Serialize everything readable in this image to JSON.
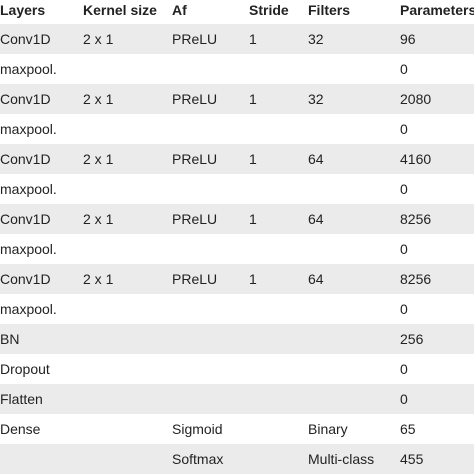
{
  "header": {
    "layers": "Layers",
    "kernel_size": "Kernel size",
    "af": "Af",
    "stride": "Stride",
    "filters": "Filters",
    "parameters": "Parameters"
  },
  "rows": [
    {
      "layers": "Conv1D",
      "kernel_size": "2 x 1",
      "af": "PReLU",
      "stride": "1",
      "filters": "32",
      "parameters": "96"
    },
    {
      "layers": "maxpool.",
      "kernel_size": "",
      "af": "",
      "stride": "",
      "filters": "",
      "parameters": "0"
    },
    {
      "layers": "Conv1D",
      "kernel_size": "2 x 1",
      "af": "PReLU",
      "stride": "1",
      "filters": "32",
      "parameters": "2080"
    },
    {
      "layers": "maxpool.",
      "kernel_size": "",
      "af": "",
      "stride": "",
      "filters": "",
      "parameters": "0"
    },
    {
      "layers": "Conv1D",
      "kernel_size": "2 x 1",
      "af": "PReLU",
      "stride": "1",
      "filters": "64",
      "parameters": "4160"
    },
    {
      "layers": "maxpool.",
      "kernel_size": "",
      "af": "",
      "stride": "",
      "filters": "",
      "parameters": "0"
    },
    {
      "layers": "Conv1D",
      "kernel_size": "2 x 1",
      "af": "PReLU",
      "stride": "1",
      "filters": "64",
      "parameters": "8256"
    },
    {
      "layers": "maxpool.",
      "kernel_size": "",
      "af": "",
      "stride": "",
      "filters": "",
      "parameters": "0"
    },
    {
      "layers": "Conv1D",
      "kernel_size": "2 x 1",
      "af": "PReLU",
      "stride": "1",
      "filters": "64",
      "parameters": "8256"
    },
    {
      "layers": "maxpool.",
      "kernel_size": "",
      "af": "",
      "stride": "",
      "filters": "",
      "parameters": "0"
    },
    {
      "layers": "BN",
      "kernel_size": "",
      "af": "",
      "stride": "",
      "filters": "",
      "parameters": "256"
    },
    {
      "layers": "Dropout",
      "kernel_size": "",
      "af": "",
      "stride": "",
      "filters": "",
      "parameters": "0"
    },
    {
      "layers": "Flatten",
      "kernel_size": "",
      "af": "",
      "stride": "",
      "filters": "",
      "parameters": "0"
    },
    {
      "layers": "Dense",
      "kernel_size": "",
      "af": "Sigmoid",
      "stride": "",
      "filters": "Binary",
      "parameters": "65"
    },
    {
      "layers": "",
      "kernel_size": "",
      "af": "Softmax",
      "stride": "",
      "filters": "Multi-class",
      "parameters": "455"
    }
  ],
  "colors": {
    "shaded_row": "#ebebeb",
    "text": "#222222",
    "background": "#ffffff"
  }
}
